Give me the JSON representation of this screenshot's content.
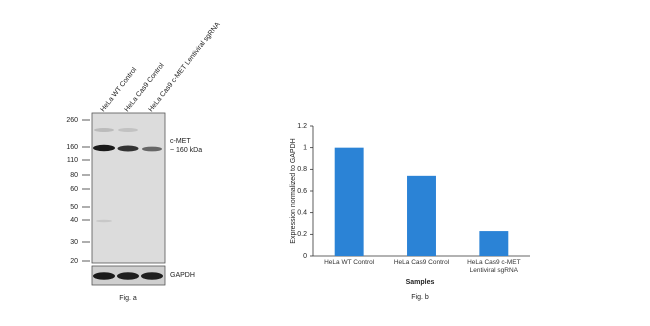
{
  "blot": {
    "lanes": [
      "HeLa WT Control",
      "HeLa Cas9 Control",
      "HeLa Cas9 c-MET Lentiviral sgRNA"
    ],
    "markers": [
      "260",
      "160",
      "110",
      "80",
      "60",
      "50",
      "40",
      "30",
      "20"
    ],
    "target_label": "c-MET",
    "target_size": "~ 160 kDa",
    "loading_label": "GAPDH",
    "caption": "Fig. a"
  },
  "chart_data": {
    "type": "bar",
    "caption": "Fig. b",
    "x_label": "Samples",
    "y_label": "Expression normalized to GAPDH",
    "categories": [
      "HeLa WT Control",
      "HeLa Cas9 Control",
      "HeLa Cas9 c-MET Lentiviral sgRNA"
    ],
    "values": [
      1,
      0.74,
      0.23
    ],
    "color": "#2b83d6",
    "ylim": [
      0,
      1.2
    ],
    "yticks": [
      0,
      0.2,
      0.4,
      0.6,
      0.8,
      1,
      1.2
    ],
    "grid": false
  }
}
